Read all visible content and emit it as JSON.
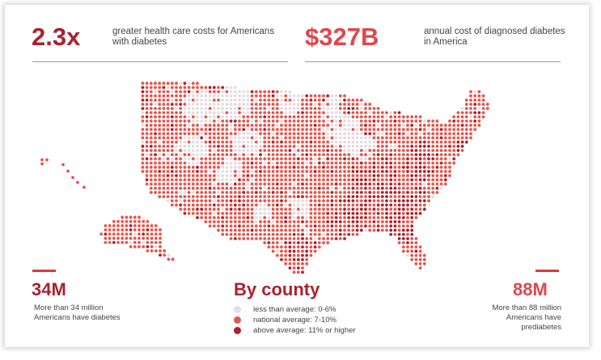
{
  "stats": {
    "left_top": {
      "value": "2.3x",
      "description": "greater health care costs for Americans with diabetes"
    },
    "right_top": {
      "value": "$327B",
      "description": "annual cost of diagnosed diabetes in America"
    },
    "left_bottom": {
      "value": "34M",
      "description": "More than 34 million Americans have diabetes"
    },
    "right_bottom": {
      "value": "88M",
      "description": "More than 88 million Americans have prediabetes"
    }
  },
  "map_title": "By county",
  "legend": [
    {
      "label": "less than average: 0-6%",
      "color": "#e4dde4"
    },
    {
      "label": "national average: 7-10%",
      "color": "#e0574d"
    },
    {
      "label": "above average: 11% or higher",
      "color": "#a8222e"
    }
  ],
  "colors": {
    "accent": "#d9383e",
    "dark_red": "#a8222e",
    "text": "#444444"
  }
}
